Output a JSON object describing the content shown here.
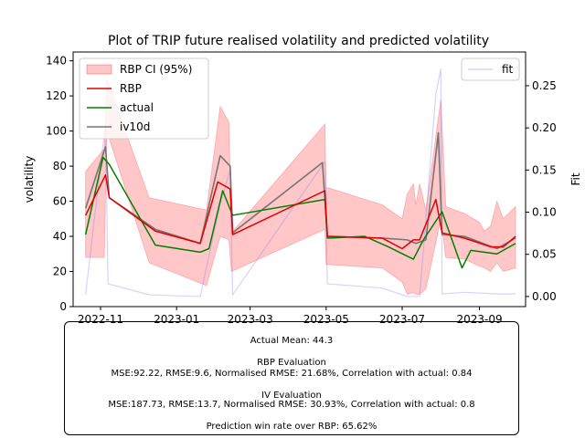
{
  "chart_data": {
    "type": "line",
    "title": "Plot of TRIP future realised volatility and predicted volatility",
    "ylabel": "volatility",
    "y2label": "Fit",
    "ylim": [
      0,
      145
    ],
    "y2lim": [
      -0.012,
      0.29
    ],
    "xlim": [
      "2022-10-10",
      "2023-10-08"
    ],
    "xticks": [
      "2022-11-01",
      "2023-01-01",
      "2023-03-01",
      "2023-05-01",
      "2023-07-01",
      "2023-09-01"
    ],
    "xtick_labels": [
      "2022-11",
      "2023-01",
      "2023-03",
      "2023-05",
      "2023-07",
      "2023-09"
    ],
    "yticks": [
      0,
      20,
      40,
      60,
      80,
      100,
      120,
      140
    ],
    "y2ticks": [
      0.0,
      0.05,
      0.1,
      0.15,
      0.2,
      0.25
    ],
    "y2tick_labels": [
      "0.00",
      "0.05",
      "0.10",
      "0.15",
      "0.20",
      "0.25"
    ],
    "legend_left": {
      "placement": "upper-left",
      "entries": [
        "RBP CI (95%)",
        "RBP",
        "actual",
        "iv10d"
      ]
    },
    "legend_right": {
      "placement": "upper-right",
      "entries": [
        "fit"
      ]
    },
    "series": [
      {
        "name": "RBP",
        "color": "#dd0000",
        "x": [
          "2022-10-20",
          "2022-11-05",
          "2022-11-08",
          "2022-12-15",
          "2023-01-20",
          "2023-02-03",
          "2023-02-13",
          "2023-02-15",
          "2023-04-30",
          "2023-05-02",
          "2023-06-15",
          "2023-07-01",
          "2023-07-10",
          "2023-07-15",
          "2023-07-28",
          "2023-08-02",
          "2023-08-20",
          "2023-09-10",
          "2023-09-20",
          "2023-09-30"
        ],
        "y": [
          52,
          75,
          62,
          43,
          36,
          71,
          67,
          41,
          66,
          40,
          39,
          33,
          38,
          38,
          61,
          42,
          39,
          34,
          34,
          40
        ]
      },
      {
        "name": "actual",
        "color": "#007700",
        "x": [
          "2022-10-20",
          "2022-11-03",
          "2022-11-08",
          "2022-12-15",
          "2023-01-20",
          "2023-01-27",
          "2023-02-07",
          "2023-02-15",
          "2023-04-30",
          "2023-05-02",
          "2023-06-01",
          "2023-06-20",
          "2023-07-10",
          "2023-07-18",
          "2023-08-02",
          "2023-08-18",
          "2023-08-25",
          "2023-09-15",
          "2023-09-30"
        ],
        "y": [
          41,
          85,
          81,
          35,
          31,
          33,
          66,
          52,
          61,
          39,
          40,
          34,
          27,
          38,
          54,
          22,
          32,
          30,
          36
        ]
      },
      {
        "name": "iv10d",
        "color": "#777777",
        "x": [
          "2022-10-20",
          "2022-11-05",
          "2022-11-08",
          "2022-12-15",
          "2023-01-20",
          "2023-02-05",
          "2023-02-13",
          "2023-02-15",
          "2023-04-28",
          "2023-05-02",
          "2023-06-15",
          "2023-07-05",
          "2023-07-12",
          "2023-07-20",
          "2023-07-30",
          "2023-08-02",
          "2023-08-20",
          "2023-09-15",
          "2023-09-30"
        ],
        "y": [
          56,
          91,
          62,
          44,
          36,
          86,
          80,
          42,
          82,
          40,
          39,
          38,
          36,
          38,
          99,
          41,
          40,
          33,
          39
        ]
      },
      {
        "name": "RBP CI (95%)",
        "color": "#ffbbbb",
        "x": [
          "2022-10-20",
          "2022-11-04",
          "2022-11-06",
          "2022-12-10",
          "2023-01-25",
          "2023-02-05",
          "2023-02-12",
          "2023-02-14",
          "2023-04-30",
          "2023-05-01",
          "2023-06-15",
          "2023-07-01",
          "2023-07-05",
          "2023-07-10",
          "2023-07-12",
          "2023-07-15",
          "2023-07-20",
          "2023-08-01",
          "2023-08-05",
          "2023-08-20",
          "2023-09-01",
          "2023-09-05",
          "2023-09-10",
          "2023-09-15",
          "2023-09-20",
          "2023-09-30"
        ],
        "upper": [
          77,
          90,
          130,
          62,
          55,
          114,
          105,
          42,
          104,
          68,
          58,
          50,
          64,
          70,
          58,
          70,
          55,
          118,
          57,
          53,
          48,
          43,
          46,
          60,
          50,
          57
        ],
        "lower": [
          28,
          28,
          100,
          25,
          12,
          40,
          38,
          20,
          44,
          24,
          22,
          14,
          7,
          8,
          7,
          7,
          10,
          50,
          28,
          27,
          23,
          22,
          20,
          25,
          20,
          22
        ]
      },
      {
        "name": "fit",
        "color": "#ccccff",
        "axis": "right",
        "x": [
          "2022-10-20",
          "2022-11-05",
          "2022-11-07",
          "2022-12-10",
          "2023-01-20",
          "2023-02-05",
          "2023-02-13",
          "2023-02-15",
          "2023-04-30",
          "2023-05-02",
          "2023-06-15",
          "2023-07-05",
          "2023-07-15",
          "2023-07-28",
          "2023-08-01",
          "2023-08-02",
          "2023-08-20",
          "2023-09-15",
          "2023-09-30"
        ],
        "y": [
          0.002,
          0.205,
          0.015,
          0.002,
          0.0,
          0.11,
          0.15,
          0.002,
          0.16,
          0.015,
          0.01,
          0.0,
          0.0,
          0.24,
          0.27,
          0.003,
          0.005,
          0.003,
          0.003
        ]
      }
    ]
  },
  "stats": {
    "actual_mean": "Actual Mean: 44.3",
    "rbp_header": "RBP Evaluation",
    "rbp_metrics": "MSE:92.22, RMSE:9.6, Normalised RMSE: 21.68%, Correlation with actual: 0.84",
    "iv_header": "IV Evaluation",
    "iv_metrics": "MSE:187.73, RMSE:13.7, Normalised RMSE: 30.93%, Correlation with actual: 0.8",
    "win_rate": "Prediction win rate over RBP: 65.62%"
  }
}
